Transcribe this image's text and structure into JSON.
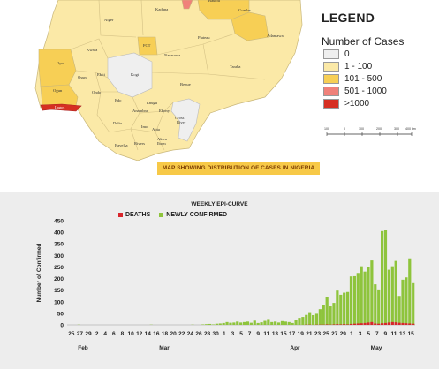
{
  "map": {
    "caption": "MAP SHOWING DISTRIBUTION OF CASES IN NIGERIA",
    "states": [
      {
        "name": "Niger",
        "level": "1 - 100"
      },
      {
        "name": "Kaduna",
        "level": "1 - 100"
      },
      {
        "name": "Bauchi",
        "level": "101 - 500"
      },
      {
        "name": "Gombe",
        "level": "101 - 500"
      },
      {
        "name": "FCT",
        "level": "101 - 500"
      },
      {
        "name": "Plateau",
        "level": "1 - 100"
      },
      {
        "name": "Adamawa",
        "level": "1 - 100"
      },
      {
        "name": "Kwara",
        "level": "1 - 100"
      },
      {
        "name": "Nasarawa",
        "level": "1 - 100"
      },
      {
        "name": "Oyo",
        "level": "101 - 500"
      },
      {
        "name": "Kogi",
        "level": "0"
      },
      {
        "name": "Taraba",
        "level": "1 - 100"
      },
      {
        "name": "Osun",
        "level": "1 - 100"
      },
      {
        "name": "Ekiti",
        "level": "1 - 100"
      },
      {
        "name": "Ogun",
        "level": "101 - 500"
      },
      {
        "name": "Ondo",
        "level": "1 - 100"
      },
      {
        "name": "Benue",
        "level": "1 - 100"
      },
      {
        "name": "Lagos",
        "level": ">1000"
      },
      {
        "name": "Edo",
        "level": "1 - 100"
      },
      {
        "name": "Enugu",
        "level": "1 - 100"
      },
      {
        "name": "Anambra",
        "level": "1 - 100"
      },
      {
        "name": "Ebonyi",
        "level": "1 - 100"
      },
      {
        "name": "Cross River",
        "level": "0"
      },
      {
        "name": "Delta",
        "level": "1 - 100"
      },
      {
        "name": "Imo",
        "level": "1 - 100"
      },
      {
        "name": "Abia",
        "level": "1 - 100"
      },
      {
        "name": "Akwa Ibom",
        "level": "1 - 100"
      },
      {
        "name": "Bayelsa",
        "level": "1 - 100"
      },
      {
        "name": "Rivers",
        "level": "1 - 100"
      }
    ],
    "top_partial_state": {
      "level": "501 - 1000"
    }
  },
  "legend": {
    "title": "LEGEND",
    "subtitle": "Number of Cases",
    "items": [
      {
        "label": "0",
        "color": "#efefef"
      },
      {
        "label": "1 - 100",
        "color": "#fbe9a7"
      },
      {
        "label": "101 - 500",
        "color": "#f7cf55"
      },
      {
        "label": "501 - 1000",
        "color": "#f0817a"
      },
      {
        "label": ">1000",
        "color": "#d62f22"
      }
    ],
    "scale_ticks": [
      "100",
      "0",
      "100",
      "200",
      "300",
      "400 km"
    ]
  },
  "colors": {
    "newly_confirmed": "#8ec43c",
    "deaths": "#d8252b",
    "panel_bg": "#ededed"
  },
  "chart_data": {
    "type": "bar",
    "title": "WEEKLY EPI-CURVE",
    "ylabel": "Number of Confirmed",
    "ylim": [
      0,
      450
    ],
    "yticks": [
      0,
      50,
      100,
      150,
      200,
      250,
      300,
      350,
      400,
      450
    ],
    "x_tick_labels": [
      "25",
      "27",
      "29",
      "2",
      "4",
      "6",
      "8",
      "10",
      "12",
      "14",
      "16",
      "18",
      "20",
      "22",
      "24",
      "26",
      "28",
      "30",
      "1",
      "3",
      "5",
      "7",
      "9",
      "11",
      "13",
      "15",
      "17",
      "19",
      "21",
      "23",
      "25",
      "27",
      "29",
      "1",
      "3",
      "5",
      "7",
      "9",
      "11",
      "13",
      "15"
    ],
    "month_labels": [
      "Feb",
      "Mar",
      "Apr",
      "May"
    ],
    "series": [
      {
        "name": "NEWLY CONFIRMED",
        "values": [
          0,
          0,
          0,
          1,
          0,
          0,
          0,
          0,
          0,
          0,
          0,
          0,
          0,
          0,
          0,
          0,
          0,
          0,
          0,
          0,
          0,
          0,
          0,
          0,
          1,
          0,
          0,
          0,
          0,
          0,
          0,
          0,
          0,
          0,
          0,
          0,
          1,
          0,
          0,
          2,
          3,
          4,
          2,
          5,
          6,
          8,
          12,
          9,
          10,
          14,
          10,
          12,
          14,
          9,
          18,
          8,
          11,
          17,
          25,
          12,
          14,
          10,
          16,
          14,
          12,
          8,
          20,
          30,
          34,
          43,
          55,
          42,
          48,
          68,
          86,
          122,
          80,
          95,
          148,
          130,
          139,
          142,
          209,
          210,
          224,
          253,
          230,
          248,
          278,
          175,
          153,
          405,
          410,
          238,
          253,
          276,
          125,
          195,
          205,
          287,
          180
        ],
        "color": "#8ec43c"
      },
      {
        "name": "DEATHS",
        "values": [
          0,
          0,
          0,
          0,
          0,
          0,
          0,
          0,
          0,
          0,
          0,
          0,
          0,
          0,
          0,
          0,
          0,
          0,
          0,
          0,
          0,
          0,
          0,
          0,
          0,
          0,
          0,
          0,
          0,
          0,
          0,
          0,
          0,
          0,
          0,
          0,
          0,
          0,
          0,
          0,
          0,
          0,
          0,
          0,
          0,
          0,
          0,
          0,
          0,
          0,
          0,
          0,
          0,
          0,
          0,
          0,
          0,
          0,
          0,
          0,
          0,
          0,
          0,
          0,
          0,
          0,
          0,
          0,
          0,
          1,
          1,
          0,
          1,
          1,
          1,
          2,
          1,
          2,
          3,
          2,
          3,
          2,
          4,
          5,
          6,
          7,
          8,
          10,
          12,
          6,
          5,
          7,
          8,
          10,
          12,
          11,
          9,
          8,
          7,
          6,
          5
        ],
        "color": "#d8252b"
      }
    ]
  }
}
